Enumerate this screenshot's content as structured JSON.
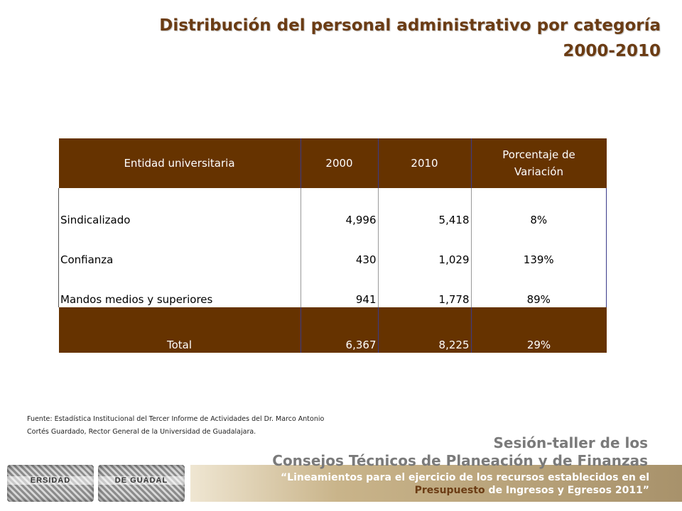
{
  "title": {
    "line1": "Distribución del personal administrativo por categoría",
    "line2": "2000-2010"
  },
  "table": {
    "headers": [
      "Entidad universitaria",
      "2000",
      "2010",
      "Porcentaje de Variación"
    ],
    "rows": [
      {
        "entity": "Sindicalizado",
        "y2000": "4,996",
        "y2010": "5,418",
        "pct": "8%"
      },
      {
        "entity": "Confianza",
        "y2000": "430",
        "y2010": "1,029",
        "pct": "139%"
      },
      {
        "entity": "Mandos medios y superiores",
        "y2000": "941",
        "y2010": "1,778",
        "pct": "89%"
      }
    ],
    "total": {
      "entity": "Total",
      "y2000": "6,367",
      "y2010": "8,225",
      "pct": "29%"
    }
  },
  "source": {
    "line1": "Fuente: Estadística  Institucional del Tercer Informe de Actividades del Dr. Marco Antonio",
    "line2": "Cortés Guardado, Rector General de la Universidad de Guadalajara."
  },
  "footer": {
    "event_line1": "Sesión-taller de los",
    "event_line2": "Consejos Técnicos de Planeación y de Finanzas",
    "quote_line1": "“Lineamientos para el ejercicio de los recursos establecidos en el",
    "quote_line2_highlight": "Presupuesto",
    "quote_line2_rest": " de Ingresos y Egresos 2011”",
    "seal_text_1": "ERSIDAD",
    "seal_text_2": "DE GUADAL"
  },
  "colors": {
    "header_brown": "#663300",
    "title_brown": "#6b3c14"
  }
}
